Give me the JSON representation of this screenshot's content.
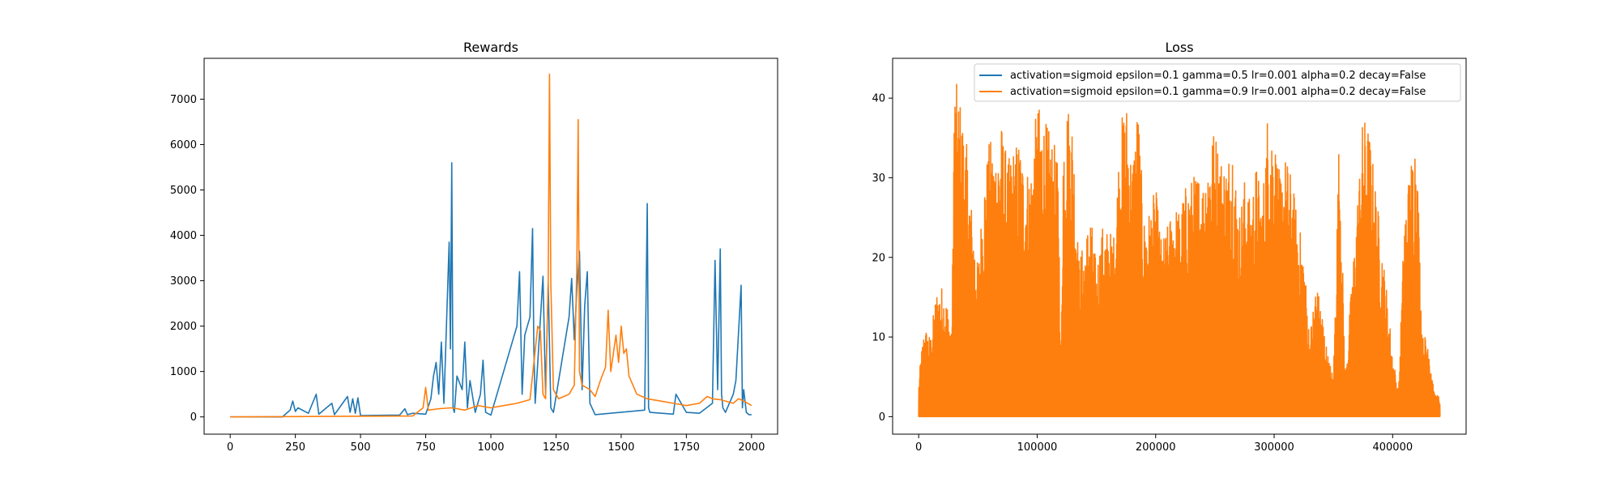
{
  "chart_data": [
    {
      "type": "line",
      "title": "Rewards",
      "xlabel": "",
      "ylabel": "",
      "xlim": [
        -100,
        2100
      ],
      "ylim": [
        -380,
        7900
      ],
      "xticks": [
        0,
        250,
        500,
        750,
        1000,
        1250,
        1500,
        1750,
        2000
      ],
      "xtick_labels": [
        "0",
        "250",
        "500",
        "750",
        "1000",
        "1250",
        "1500",
        "1750",
        "2000"
      ],
      "yticks": [
        0,
        1000,
        2000,
        3000,
        4000,
        5000,
        6000,
        7000
      ],
      "ytick_labels": [
        "0",
        "1000",
        "2000",
        "3000",
        "4000",
        "5000",
        "6000",
        "7000"
      ],
      "grid": false,
      "series": [
        {
          "color": "#1f77b4",
          "x": [
            0,
            200,
            230,
            240,
            250,
            260,
            300,
            330,
            340,
            390,
            400,
            450,
            460,
            470,
            480,
            490,
            500,
            650,
            670,
            680,
            700,
            750,
            770,
            780,
            790,
            800,
            810,
            820,
            840,
            845,
            850,
            855,
            860,
            870,
            890,
            900,
            910,
            920,
            940,
            960,
            970,
            980,
            1000,
            1100,
            1110,
            1120,
            1130,
            1150,
            1160,
            1165,
            1170,
            1180,
            1200,
            1210,
            1220,
            1230,
            1240,
            1300,
            1310,
            1320,
            1330,
            1340,
            1350,
            1360,
            1370,
            1380,
            1400,
            1590,
            1600,
            1605,
            1610,
            1700,
            1710,
            1750,
            1800,
            1850,
            1860,
            1870,
            1880,
            1885,
            1890,
            1900,
            1930,
            1940,
            1960,
            1965,
            1970,
            1980,
            1990,
            2000
          ],
          "y": [
            0,
            0,
            150,
            350,
            120,
            200,
            80,
            500,
            60,
            300,
            50,
            450,
            100,
            400,
            80,
            420,
            30,
            40,
            180,
            50,
            80,
            60,
            400,
            900,
            1200,
            500,
            1650,
            300,
            3850,
            1500,
            5600,
            200,
            100,
            900,
            600,
            1650,
            200,
            800,
            100,
            500,
            1250,
            100,
            40,
            2000,
            3200,
            500,
            1800,
            2200,
            4150,
            1500,
            300,
            1200,
            3100,
            500,
            2950,
            200,
            100,
            2200,
            3050,
            1700,
            2800,
            3650,
            600,
            2450,
            3200,
            300,
            50,
            150,
            4700,
            200,
            100,
            60,
            500,
            100,
            80,
            300,
            3450,
            600,
            3700,
            500,
            200,
            100,
            500,
            800,
            2900,
            200,
            600,
            100,
            50,
            50
          ]
        },
        {
          "color": "#ff7f0e",
          "x": [
            0,
            700,
            740,
            750,
            760,
            800,
            850,
            900,
            950,
            1000,
            1050,
            1100,
            1150,
            1180,
            1190,
            1200,
            1210,
            1220,
            1225,
            1230,
            1240,
            1260,
            1280,
            1300,
            1320,
            1330,
            1335,
            1340,
            1350,
            1380,
            1400,
            1420,
            1440,
            1450,
            1460,
            1480,
            1490,
            1500,
            1510,
            1520,
            1530,
            1560,
            1600,
            1650,
            1700,
            1750,
            1800,
            1830,
            1850,
            1880,
            1900,
            1930,
            1950,
            1970,
            2000
          ],
          "y": [
            0,
            20,
            200,
            650,
            150,
            180,
            200,
            150,
            250,
            200,
            250,
            300,
            380,
            2000,
            1900,
            500,
            400,
            3000,
            7550,
            2950,
            600,
            400,
            450,
            500,
            700,
            3400,
            6550,
            1000,
            700,
            600,
            450,
            800,
            1100,
            2350,
            1000,
            1800,
            1200,
            2000,
            1400,
            1500,
            900,
            500,
            400,
            350,
            300,
            250,
            300,
            450,
            400,
            380,
            350,
            300,
            400,
            350,
            250
          ]
        }
      ]
    },
    {
      "type": "line",
      "title": "Loss",
      "xlabel": "",
      "ylabel": "",
      "xlim": [
        -22000,
        462000
      ],
      "ylim": [
        -2.2,
        45
      ],
      "xticks": [
        0,
        100000,
        200000,
        300000,
        400000
      ],
      "xtick_labels": [
        "0",
        "100000",
        "200000",
        "300000",
        "400000"
      ],
      "yticks": [
        0,
        10,
        20,
        30,
        40
      ],
      "ytick_labels": [
        "0",
        "10",
        "20",
        "30",
        "40"
      ],
      "grid": false,
      "legend": {
        "location": "upper-right",
        "entries": [
          {
            "color": "#1f77b4",
            "label": "activation=sigmoid epsilon=0.1 gamma=0.5 lr=0.001 alpha=0.2 decay=False"
          },
          {
            "color": "#ff7f0e",
            "label": "activation=sigmoid epsilon=0.1 gamma=0.9 lr=0.001 alpha=0.2 decay=False"
          }
        ]
      },
      "series": [
        {
          "color": "#1f77b4",
          "x": [
            0,
            2000,
            3000,
            5000,
            10000,
            20000,
            60000,
            120000,
            122000,
            125000,
            175000,
            176000,
            178000,
            180000,
            185000,
            186000,
            187000
          ],
          "y": [
            0,
            4,
            1,
            0.5,
            0.2,
            0.1,
            0.1,
            0.1,
            0.5,
            0.1,
            0.1,
            0.5,
            0.2,
            0.5,
            0.3,
            0.5,
            0.1
          ]
        },
        {
          "color": "#ff7f0e",
          "x_range": [
            0,
            440000
          ],
          "envelope": [
            [
              0,
              4
            ],
            [
              2000,
              8
            ],
            [
              5000,
              11.5
            ],
            [
              10000,
              10
            ],
            [
              15000,
              16
            ],
            [
              20000,
              16.5
            ],
            [
              25000,
              14
            ],
            [
              28000,
              10
            ],
            [
              30000,
              43
            ],
            [
              35000,
              40
            ],
            [
              40000,
              35
            ],
            [
              45000,
              26
            ],
            [
              50000,
              19
            ],
            [
              55000,
              30
            ],
            [
              60000,
              35
            ],
            [
              65000,
              34
            ],
            [
              70000,
              37
            ],
            [
              75000,
              32
            ],
            [
              80000,
              34
            ],
            [
              85000,
              35
            ],
            [
              90000,
              31
            ],
            [
              95000,
              32
            ],
            [
              100000,
              39.5
            ],
            [
              105000,
              38
            ],
            [
              110000,
              36
            ],
            [
              115000,
              34
            ],
            [
              118000,
              31
            ],
            [
              120000,
              5
            ],
            [
              122000,
              37
            ],
            [
              125000,
              40
            ],
            [
              130000,
              38
            ],
            [
              135000,
              20
            ],
            [
              140000,
              22
            ],
            [
              145000,
              26
            ],
            [
              150000,
              19
            ],
            [
              155000,
              24
            ],
            [
              160000,
              23.5
            ],
            [
              165000,
              23
            ],
            [
              170000,
              36.5
            ],
            [
              175000,
              40.5
            ],
            [
              180000,
              32
            ],
            [
              185000,
              40
            ],
            [
              190000,
              25
            ],
            [
              195000,
              26
            ],
            [
              200000,
              29
            ],
            [
              205000,
              22
            ],
            [
              210000,
              24
            ],
            [
              215000,
              27
            ],
            [
              220000,
              26
            ],
            [
              225000,
              29
            ],
            [
              230000,
              30
            ],
            [
              235000,
              31
            ],
            [
              240000,
              30
            ],
            [
              245000,
              35
            ],
            [
              250000,
              36.5
            ],
            [
              255000,
              33
            ],
            [
              260000,
              32
            ],
            [
              265000,
              36
            ],
            [
              270000,
              25
            ],
            [
              275000,
              30
            ],
            [
              280000,
              27
            ],
            [
              285000,
              32
            ],
            [
              290000,
              27
            ],
            [
              295000,
              40
            ],
            [
              300000,
              36
            ],
            [
              305000,
              30
            ],
            [
              310000,
              33
            ],
            [
              315000,
              30
            ],
            [
              320000,
              25
            ],
            [
              325000,
              21
            ],
            [
              330000,
              10
            ],
            [
              335000,
              17
            ],
            [
              340000,
              14
            ],
            [
              345000,
              8
            ],
            [
              350000,
              5
            ],
            [
              355000,
              37
            ],
            [
              360000,
              5
            ],
            [
              365000,
              16
            ],
            [
              370000,
              27
            ],
            [
              375000,
              38
            ],
            [
              380000,
              36.5
            ],
            [
              385000,
              30
            ],
            [
              390000,
              23
            ],
            [
              395000,
              16
            ],
            [
              400000,
              8
            ],
            [
              405000,
              3
            ],
            [
              410000,
              26
            ],
            [
              415000,
              32
            ],
            [
              420000,
              37
            ],
            [
              425000,
              10
            ],
            [
              430000,
              10.5
            ],
            [
              435000,
              3
            ],
            [
              440000,
              2.5
            ]
          ]
        }
      ]
    }
  ]
}
